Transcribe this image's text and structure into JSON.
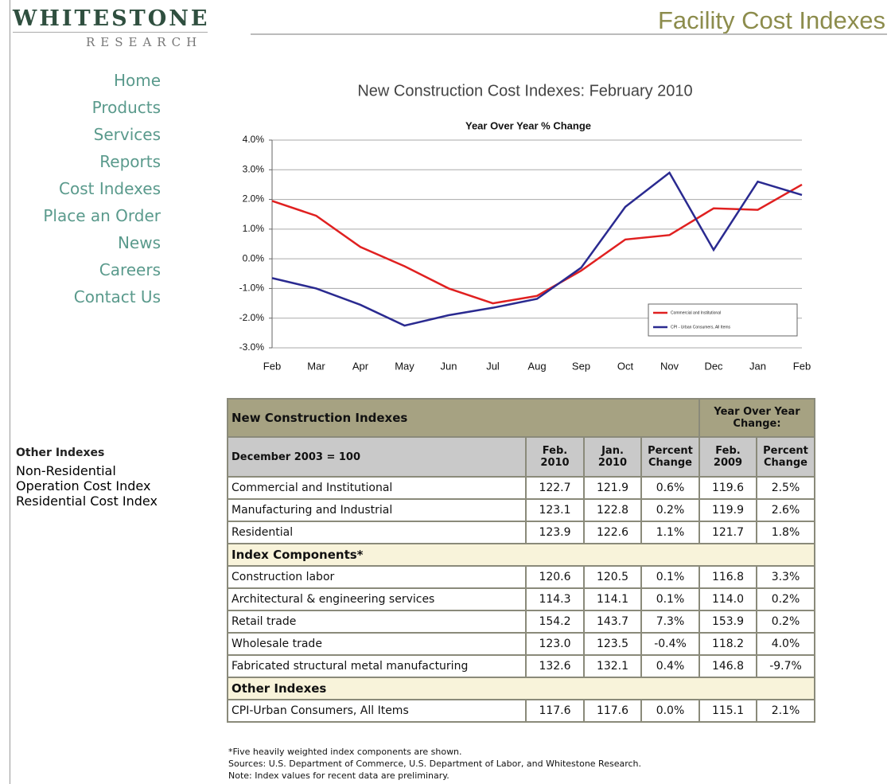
{
  "header": {
    "logo": "WHITESTONE",
    "logo_sub": "RESEARCH",
    "title": "Facility Cost Indexes"
  },
  "nav": [
    "Home",
    "Products",
    "Services",
    "Reports",
    "Cost Indexes",
    "Place an Order",
    "News",
    "Careers",
    "Contact Us"
  ],
  "sidebar": {
    "title": "Other Indexes",
    "links": [
      "Non-Residential Operation Cost Index",
      "Residential Cost Index"
    ]
  },
  "chart_data": {
    "type": "line",
    "title": "New Construction Cost Indexes: February 2010",
    "subtitle": "Year Over Year % Change",
    "categories": [
      "Feb",
      "Mar",
      "Apr",
      "May",
      "Jun",
      "Jul",
      "Aug",
      "Sep",
      "Oct",
      "Nov",
      "Dec",
      "Jan",
      "Feb"
    ],
    "series": [
      {
        "name": "Commercial and Institutional",
        "color": "#e02020",
        "values": [
          1.95,
          1.45,
          0.4,
          -0.25,
          -1.0,
          -1.5,
          -1.25,
          -0.4,
          0.65,
          0.8,
          1.7,
          1.65,
          2.5
        ]
      },
      {
        "name": "CPI - Urban Consumers, All Items",
        "color": "#2a2a90",
        "values": [
          -0.65,
          -1.0,
          -1.55,
          -2.25,
          -1.9,
          -1.65,
          -1.35,
          -0.3,
          1.75,
          2.9,
          0.3,
          2.6,
          2.15
        ]
      }
    ],
    "ylim": [
      -3,
      4
    ],
    "yticks": [
      {
        "value": 4,
        "label": "4.0%"
      },
      {
        "value": 3,
        "label": "3.0%"
      },
      {
        "value": 2,
        "label": "2.0%"
      },
      {
        "value": 1,
        "label": "1.0%"
      },
      {
        "value": 0,
        "label": "0.0%"
      },
      {
        "value": -1,
        "label": "-1.0%"
      },
      {
        "value": -2,
        "label": "-2.0%"
      },
      {
        "value": -3,
        "label": "-3.0%"
      }
    ],
    "grid": true,
    "legend": "lower right"
  },
  "table": {
    "title": "New Construction Indexes",
    "group_header": "Year Over Year Change:",
    "base": "December 2003 = 100",
    "columns": [
      "Feb. 2010",
      "Jan. 2010",
      "Percent Change",
      "Feb. 2009",
      "Percent Change"
    ],
    "sections": [
      {
        "rows": [
          [
            "Commercial and Institutional",
            "122.7",
            "121.9",
            "0.6%",
            "119.6",
            "2.5%"
          ],
          [
            "Manufacturing and Industrial",
            "123.1",
            "122.8",
            "0.2%",
            "119.9",
            "2.6%"
          ],
          [
            "Residential",
            "123.9",
            "122.6",
            "1.1%",
            "121.7",
            "1.8%"
          ]
        ]
      },
      {
        "title": "Index Components*",
        "rows": [
          [
            "Construction labor",
            "120.6",
            "120.5",
            "0.1%",
            "116.8",
            "3.3%"
          ],
          [
            "Architectural & engineering services",
            "114.3",
            "114.1",
            "0.1%",
            "114.0",
            "0.2%"
          ],
          [
            "Retail trade",
            "154.2",
            "143.7",
            "7.3%",
            "153.9",
            "0.2%"
          ],
          [
            "Wholesale trade",
            "123.0",
            "123.5",
            "-0.4%",
            "118.2",
            "4.0%"
          ],
          [
            "Fabricated structural metal manufacturing",
            "132.6",
            "132.1",
            "0.4%",
            "146.8",
            "-9.7%"
          ]
        ]
      },
      {
        "title": "Other Indexes",
        "rows": [
          [
            "CPI-Urban Consumers, All Items",
            "117.6",
            "117.6",
            "0.0%",
            "115.1",
            "2.1%"
          ]
        ]
      }
    ]
  },
  "footnotes": [
    "*Five heavily weighted index components are shown.",
    "Sources: U.S. Department of Commerce, U.S. Department of Labor, and Whitestone Research.",
    "Note: Index values for recent data are preliminary."
  ]
}
